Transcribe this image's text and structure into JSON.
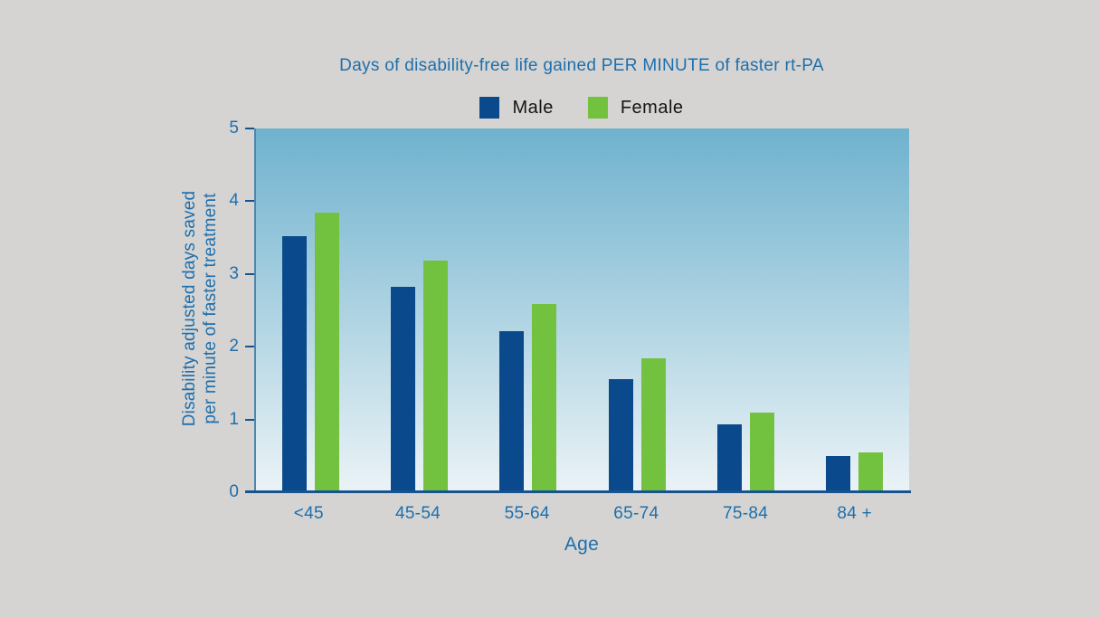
{
  "background_color": "#d5d4d2",
  "chart_data": {
    "type": "bar",
    "title": "Days of disability-free life gained PER MINUTE of faster rt-PA",
    "categories": [
      "<45",
      "45-54",
      "55-64",
      "65-74",
      "75-84",
      "84 +"
    ],
    "series": [
      {
        "name": "Male",
        "color": "#0a4a8c",
        "values": [
          3.52,
          2.82,
          2.21,
          1.55,
          0.93,
          0.5
        ]
      },
      {
        "name": "Female",
        "color": "#72c240",
        "values": [
          3.84,
          3.18,
          2.59,
          1.84,
          1.1,
          0.55
        ]
      }
    ],
    "xlabel": "Age",
    "ylabel": "Disability adjusted days saved\nper minute of faster treatment",
    "y_ticks": [
      0,
      1,
      2,
      3,
      4,
      5
    ],
    "ylim": [
      0,
      5
    ],
    "grid": false,
    "legend_position": "top-center",
    "plot_gradient_top": "#6fb2cd",
    "plot_gradient_bottom": "#ebf3f7",
    "axis_color": "#17538f",
    "label_color": "#1d6fad",
    "legend_text_color": "#141414"
  }
}
